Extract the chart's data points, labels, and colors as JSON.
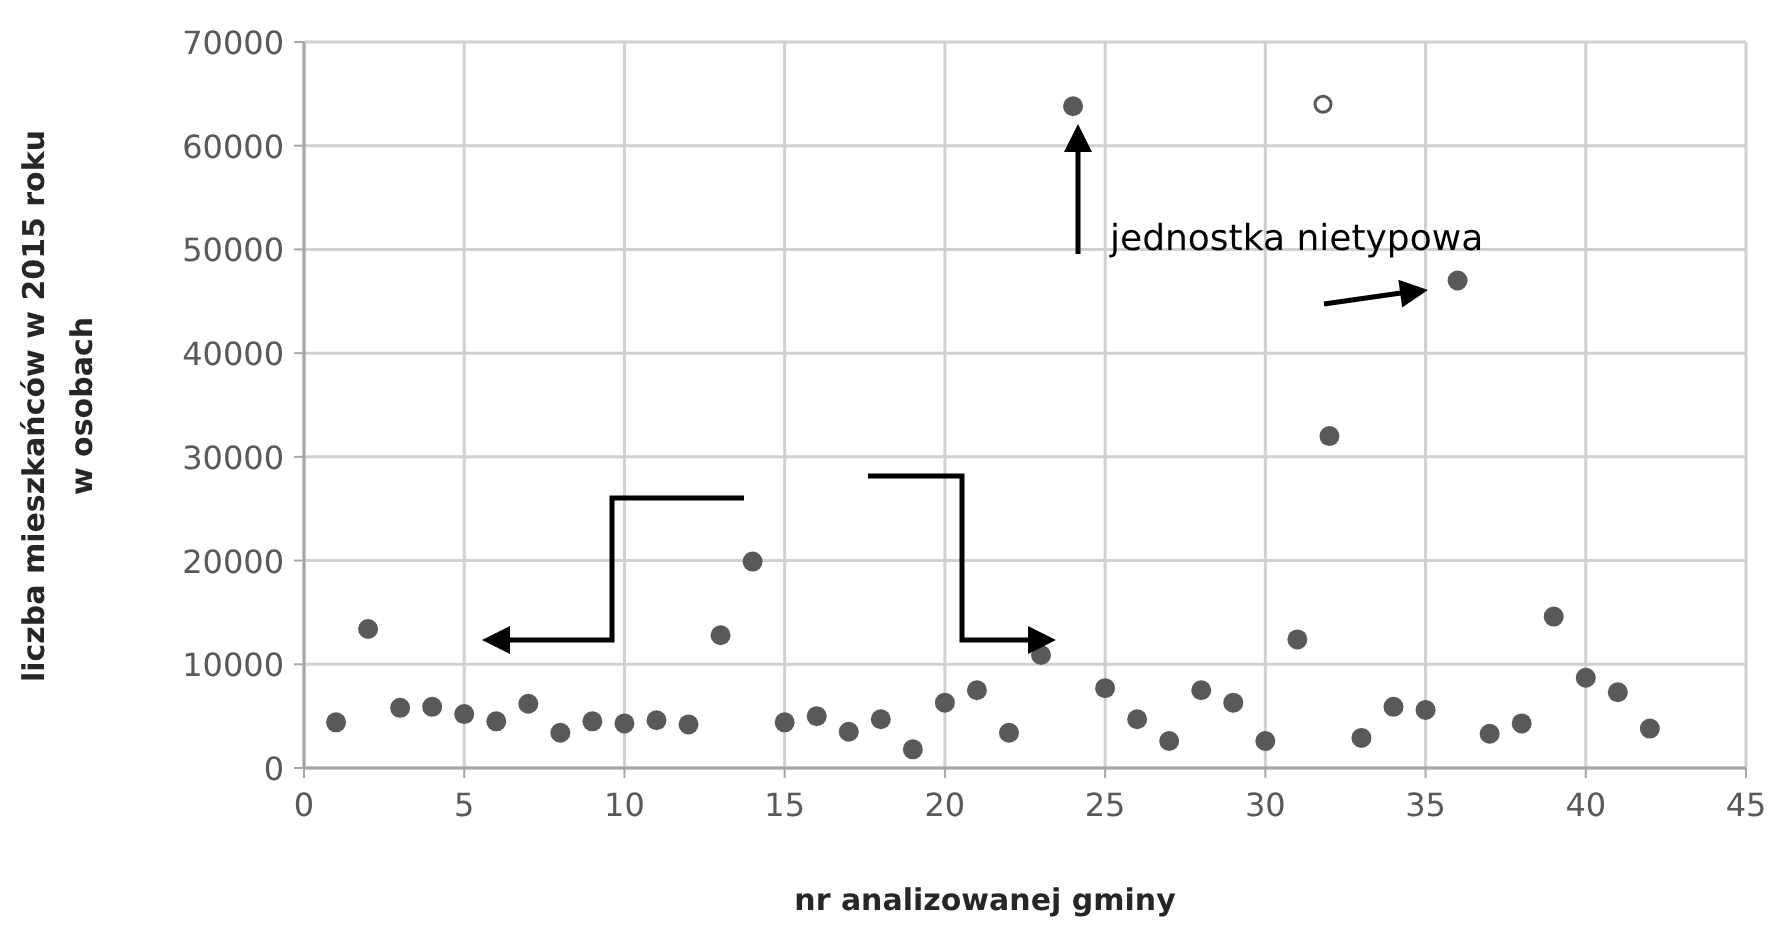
{
  "chart_data": {
    "type": "scatter",
    "xlabel": "nr analizowanej gminy",
    "ylabel": "liczba mieszkańców w 2015 roku\nw osobach",
    "xlim": [
      0,
      45
    ],
    "xticks": [
      0,
      5,
      10,
      15,
      20,
      25,
      30,
      35,
      40,
      45
    ],
    "ylim": [
      0,
      70000
    ],
    "yticks": [
      0,
      10000,
      20000,
      30000,
      40000,
      50000,
      60000,
      70000
    ],
    "grid": true,
    "marker": "circle",
    "series": [
      {
        "color": "#595959",
        "x": [
          1,
          2,
          3,
          4,
          5,
          6,
          7,
          8,
          9,
          10,
          11,
          12,
          13,
          14,
          15,
          16,
          17,
          18,
          19,
          20,
          21,
          22,
          23,
          24,
          25,
          26,
          27,
          28,
          29,
          30,
          31,
          32,
          33,
          34,
          35,
          36,
          37,
          38,
          39,
          40,
          41,
          42
        ],
        "values": [
          4400,
          13400,
          5800,
          5900,
          5200,
          4500,
          6200,
          3400,
          4500,
          4300,
          4600,
          4200,
          12800,
          19900,
          4400,
          5000,
          3500,
          4700,
          1800,
          6300,
          7500,
          3400,
          10900,
          63800,
          7700,
          4700,
          2600,
          7500,
          6300,
          2600,
          12400,
          32000,
          2900,
          5900,
          5600,
          47000,
          3300,
          4300,
          14600,
          8700,
          7300,
          3800
        ]
      },
      {
        "color": "#ffffff",
        "x": [
          31.8
        ],
        "values": [
          64000
        ]
      }
    ],
    "annotations": [
      "jednostka nietypowa"
    ]
  }
}
